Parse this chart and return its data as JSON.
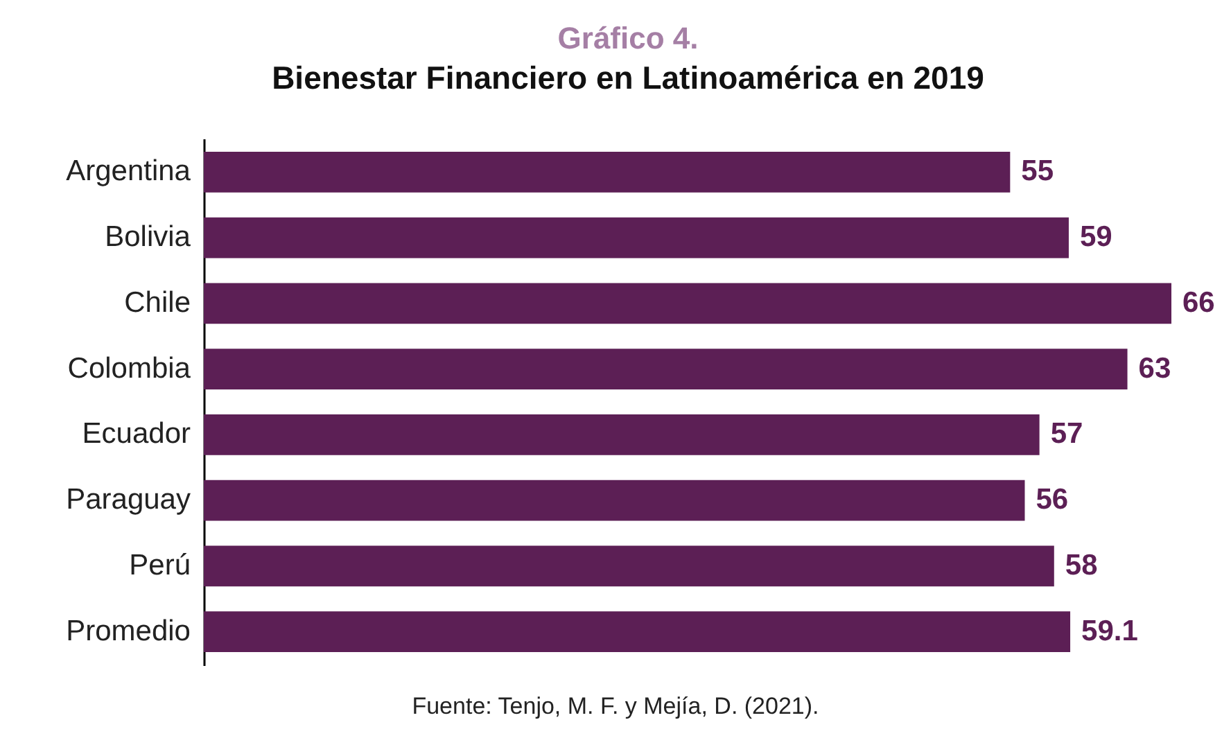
{
  "chart_data": {
    "type": "bar",
    "orientation": "horizontal",
    "title": "Gráfico 4.",
    "subtitle": "Bienestar Financiero en Latinoamérica en 2019",
    "categories": [
      "Argentina",
      "Bolivia",
      "Chile",
      "Colombia",
      "Ecuador",
      "Paraguay",
      "Perú",
      "Promedio"
    ],
    "values": [
      55,
      59,
      66,
      63,
      57,
      56,
      58,
      59.1
    ],
    "color": "#5c1f55",
    "data_labels": true,
    "tick_labels": "y",
    "annotations": [
      "Fuente: Tenjo, M. F. y Mejía, D. (2021)."
    ]
  }
}
